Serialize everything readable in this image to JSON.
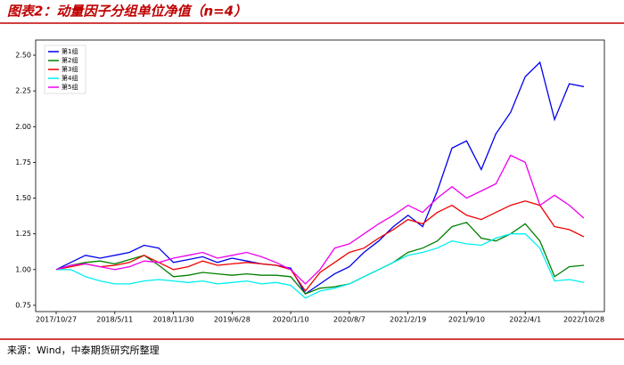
{
  "chart_data": {
    "type": "line",
    "title": "图表2：动量因子分组单位净值（n=4）",
    "source": "来源：Wind，中泰期货研究所整理",
    "categories": [
      "2017/10/27",
      null,
      null,
      null,
      "2018/5/11",
      null,
      null,
      null,
      "2018/11/30",
      null,
      null,
      null,
      "2019/6/28",
      null,
      null,
      null,
      "2020/1/10",
      null,
      null,
      null,
      "2020/8/7",
      null,
      null,
      null,
      "2021/2/19",
      null,
      null,
      null,
      "2021/9/10",
      null,
      null,
      null,
      "2022/4/1",
      null,
      null,
      null,
      "2022/10/28"
    ],
    "series": [
      {
        "name": "第1组",
        "color": "#0000ee",
        "values": [
          1.0,
          1.05,
          1.1,
          1.08,
          1.1,
          1.12,
          1.17,
          1.15,
          1.05,
          1.07,
          1.09,
          1.05,
          1.08,
          1.06,
          1.04,
          1.03,
          1.01,
          0.83,
          0.9,
          0.97,
          1.02,
          1.12,
          1.2,
          1.3,
          1.38,
          1.3,
          1.55,
          1.85,
          1.9,
          1.7,
          1.95,
          2.1,
          2.35,
          2.45,
          2.05,
          2.3,
          2.28
        ]
      },
      {
        "name": "第2组",
        "color": "#008000",
        "values": [
          1.0,
          1.03,
          1.05,
          1.06,
          1.04,
          1.07,
          1.1,
          1.03,
          0.95,
          0.96,
          0.98,
          0.97,
          0.96,
          0.97,
          0.96,
          0.96,
          0.95,
          0.83,
          0.87,
          0.88,
          0.9,
          0.95,
          1.0,
          1.05,
          1.12,
          1.15,
          1.2,
          1.3,
          1.33,
          1.22,
          1.2,
          1.25,
          1.32,
          1.2,
          0.95,
          1.02,
          1.03
        ]
      },
      {
        "name": "第3组",
        "color": "#ee0000",
        "values": [
          1.0,
          1.02,
          1.04,
          1.02,
          1.03,
          1.05,
          1.1,
          1.05,
          1.0,
          1.02,
          1.06,
          1.03,
          1.04,
          1.05,
          1.04,
          1.03,
          1.0,
          0.85,
          0.98,
          1.05,
          1.12,
          1.15,
          1.22,
          1.28,
          1.35,
          1.32,
          1.4,
          1.45,
          1.38,
          1.35,
          1.4,
          1.45,
          1.48,
          1.45,
          1.3,
          1.28,
          1.23
        ]
      },
      {
        "name": "第4组",
        "color": "#00eeee",
        "values": [
          1.0,
          1.0,
          0.95,
          0.92,
          0.9,
          0.9,
          0.92,
          0.93,
          0.92,
          0.91,
          0.92,
          0.9,
          0.91,
          0.92,
          0.9,
          0.91,
          0.89,
          0.8,
          0.85,
          0.87,
          0.9,
          0.95,
          1.0,
          1.05,
          1.1,
          1.12,
          1.15,
          1.2,
          1.18,
          1.17,
          1.22,
          1.25,
          1.25,
          1.15,
          0.92,
          0.93,
          0.91
        ]
      },
      {
        "name": "第5组",
        "color": "#ee00ee",
        "values": [
          1.0,
          1.03,
          1.04,
          1.02,
          1.0,
          1.02,
          1.06,
          1.05,
          1.08,
          1.1,
          1.12,
          1.08,
          1.1,
          1.12,
          1.09,
          1.05,
          1.0,
          0.9,
          1.0,
          1.15,
          1.18,
          1.25,
          1.32,
          1.38,
          1.45,
          1.4,
          1.5,
          1.58,
          1.5,
          1.55,
          1.6,
          1.8,
          1.75,
          1.45,
          1.52,
          1.45,
          1.36
        ]
      }
    ],
    "ylim": [
      0.706,
      2.606
    ],
    "yticks": [
      {
        "value": 0.75,
        "label": "0.75"
      },
      {
        "value": 1,
        "label": "1.00"
      },
      {
        "value": 1.25,
        "label": "1.25"
      },
      {
        "value": 1.5,
        "label": "1.50"
      },
      {
        "value": 1.75,
        "label": "1.75"
      },
      {
        "value": 2,
        "label": "2.00"
      },
      {
        "value": 2.25,
        "label": "2.25"
      },
      {
        "value": 2.5,
        "label": "2.50"
      }
    ],
    "legend": "upper left",
    "grid": false
  }
}
